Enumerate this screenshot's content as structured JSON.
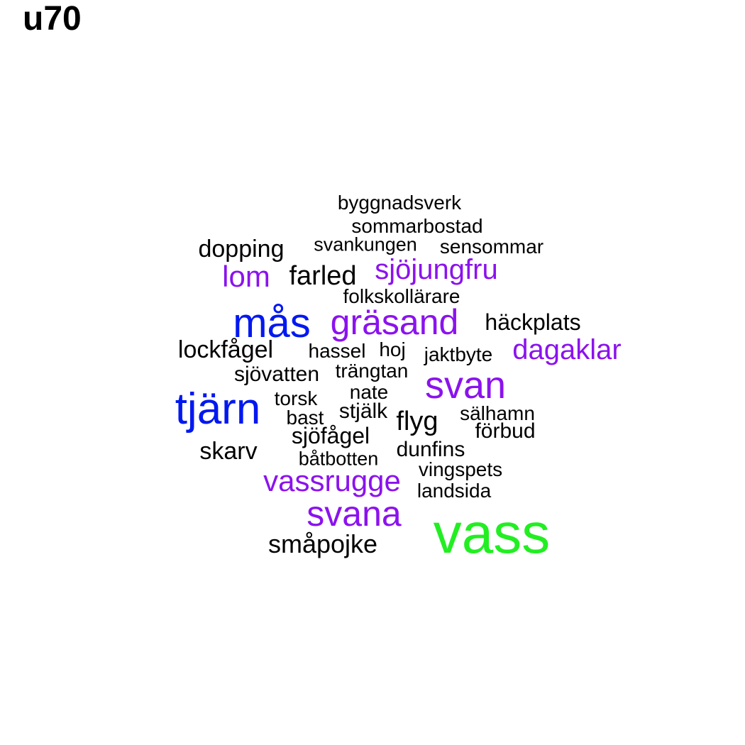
{
  "title": "u70",
  "palette": {
    "black": "#000000",
    "purple": "#8b12ee",
    "blue": "#0018f0",
    "green": "#22ee22"
  },
  "words": [
    {
      "text": "byggnadsverk",
      "color": "black"
    },
    {
      "text": "sommarbostad",
      "color": "black"
    },
    {
      "text": "dopping",
      "color": "black"
    },
    {
      "text": "svankungen",
      "color": "black"
    },
    {
      "text": "sensommar",
      "color": "black"
    },
    {
      "text": "lom",
      "color": "purple"
    },
    {
      "text": "farled",
      "color": "black"
    },
    {
      "text": "sjöjungfru",
      "color": "purple"
    },
    {
      "text": "folkskollärare",
      "color": "black"
    },
    {
      "text": "mås",
      "color": "blue"
    },
    {
      "text": "gräsand",
      "color": "purple"
    },
    {
      "text": "häckplats",
      "color": "black"
    },
    {
      "text": "lockfågel",
      "color": "black"
    },
    {
      "text": "hassel",
      "color": "black"
    },
    {
      "text": "hoj",
      "color": "black"
    },
    {
      "text": "jaktbyte",
      "color": "black"
    },
    {
      "text": "dagaklar",
      "color": "purple"
    },
    {
      "text": "sjövatten",
      "color": "black"
    },
    {
      "text": "trängtan",
      "color": "black"
    },
    {
      "text": "svan",
      "color": "purple"
    },
    {
      "text": "nate",
      "color": "black"
    },
    {
      "text": "torsk",
      "color": "black"
    },
    {
      "text": "tjärn",
      "color": "blue"
    },
    {
      "text": "stjälk",
      "color": "black"
    },
    {
      "text": "bast",
      "color": "black"
    },
    {
      "text": "flyg",
      "color": "black"
    },
    {
      "text": "sälhamn",
      "color": "black"
    },
    {
      "text": "sjöfågel",
      "color": "black"
    },
    {
      "text": "förbud",
      "color": "black"
    },
    {
      "text": "skarv",
      "color": "black"
    },
    {
      "text": "dunfins",
      "color": "black"
    },
    {
      "text": "båtbotten",
      "color": "black"
    },
    {
      "text": "vingspets",
      "color": "black"
    },
    {
      "text": "vassrugge",
      "color": "purple"
    },
    {
      "text": "landsida",
      "color": "black"
    },
    {
      "text": "svana",
      "color": "purple"
    },
    {
      "text": "vass",
      "color": "green"
    },
    {
      "text": "småpojke",
      "color": "black"
    }
  ]
}
